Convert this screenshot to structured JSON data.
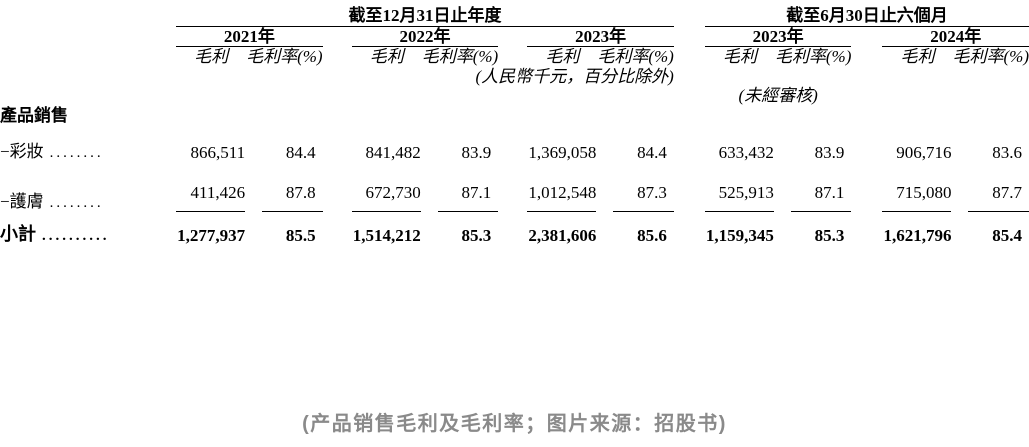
{
  "table": {
    "groups": [
      {
        "title": "截至12月31日止年度",
        "years": [
          "2021年",
          "2022年",
          "2023年"
        ]
      },
      {
        "title": "截至6月30日止六個月",
        "years": [
          "2023年",
          "2024年"
        ]
      }
    ],
    "subheader": {
      "profit": "毛利",
      "margin": "毛利率(%)"
    },
    "currency_note": "(人民幣千元，百分比除外)",
    "unaudited_note": "(未經審核)",
    "section_title": "產品銷售",
    "rows": [
      {
        "label": "−彩妝",
        "dots": "........",
        "values": [
          "866,511",
          "84.4",
          "841,482",
          "83.9",
          "1,369,058",
          "84.4",
          "633,432",
          "83.9",
          "906,716",
          "83.6"
        ]
      },
      {
        "label": "−護膚",
        "dots": "........",
        "values": [
          "411,426",
          "87.8",
          "672,730",
          "87.1",
          "1,012,548",
          "87.3",
          "525,913",
          "87.1",
          "715,080",
          "87.7"
        ]
      },
      {
        "label": "小計",
        "dots": "..........",
        "values": [
          "1,277,937",
          "85.5",
          "1,514,212",
          "85.3",
          "2,381,606",
          "85.6",
          "1,159,345",
          "85.3",
          "1,621,796",
          "85.4"
        ]
      }
    ]
  },
  "caption": "(产品销售毛利及毛利率；图片来源：招股书)"
}
